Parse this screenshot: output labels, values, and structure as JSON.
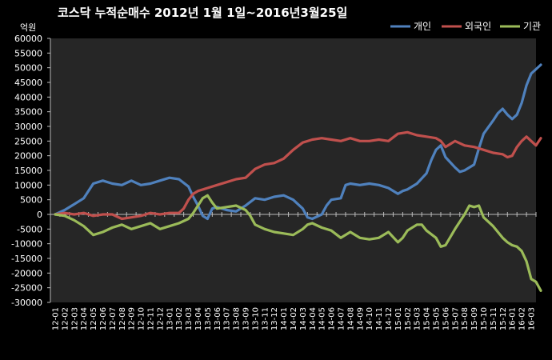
{
  "chart_data": {
    "type": "line",
    "title": "코스닥  누적순매수 2012년 1월 1일~2016년3월25일",
    "unit_label": "억원",
    "ylim": [
      -30000,
      60000
    ],
    "y_ticks": [
      60000,
      55000,
      50000,
      45000,
      40000,
      35000,
      30000,
      25000,
      20000,
      15000,
      10000,
      5000,
      0,
      -5000,
      -10000,
      -15000,
      -20000,
      -25000,
      -30000
    ],
    "categories": [
      "12-01",
      "12-02",
      "12-03",
      "12-04",
      "12-05",
      "12-06",
      "12-07",
      "12-08",
      "12-09",
      "12-10",
      "12-11",
      "12-12",
      "13-01",
      "13-02",
      "13-03",
      "13-04",
      "13-05",
      "13-06",
      "13-07",
      "13-08",
      "13-09",
      "13-10",
      "13-11",
      "13-12",
      "14-01",
      "14-02",
      "14-03",
      "14-04",
      "14-05",
      "14-06",
      "14-07",
      "14-08",
      "14-09",
      "14-10",
      "14-11",
      "14-12",
      "15-01",
      "15-02",
      "15-03",
      "15-04",
      "15-05",
      "15-06",
      "15-07",
      "15-08",
      "15-09",
      "15-10",
      "15-11",
      "15-12",
      "16-01",
      "16-02",
      "16-03"
    ],
    "grid": false,
    "legend_position": "top-right",
    "series": [
      {
        "name": "개인",
        "color": "#4F81BD",
        "points": [
          [
            0,
            0
          ],
          [
            1,
            1500
          ],
          [
            2,
            3500
          ],
          [
            3,
            5500
          ],
          [
            4,
            10500
          ],
          [
            5,
            11500
          ],
          [
            6,
            10500
          ],
          [
            7,
            10000
          ],
          [
            8,
            11500
          ],
          [
            9,
            10000
          ],
          [
            10,
            10500
          ],
          [
            11,
            11500
          ],
          [
            12,
            12500
          ],
          [
            13,
            12000
          ],
          [
            14,
            9500
          ],
          [
            14.5,
            6000
          ],
          [
            15,
            3000
          ],
          [
            15.5,
            -500
          ],
          [
            16,
            -1500
          ],
          [
            16.5,
            2000
          ],
          [
            17,
            2500
          ],
          [
            18,
            1500
          ],
          [
            19,
            1000
          ],
          [
            20,
            3000
          ],
          [
            21,
            5500
          ],
          [
            22,
            5000
          ],
          [
            23,
            6000
          ],
          [
            24,
            6500
          ],
          [
            25,
            5000
          ],
          [
            26,
            2000
          ],
          [
            26.5,
            -1000
          ],
          [
            27,
            -1500
          ],
          [
            28,
            0
          ],
          [
            28.5,
            3000
          ],
          [
            29,
            5000
          ],
          [
            30,
            5500
          ],
          [
            30.5,
            10000
          ],
          [
            31,
            10500
          ],
          [
            32,
            10000
          ],
          [
            33,
            10500
          ],
          [
            34,
            10000
          ],
          [
            35,
            9000
          ],
          [
            36,
            7000
          ],
          [
            36.5,
            8000
          ],
          [
            37,
            8500
          ],
          [
            38,
            10500
          ],
          [
            39,
            14000
          ],
          [
            39.5,
            18500
          ],
          [
            40,
            22000
          ],
          [
            40.5,
            23500
          ],
          [
            41,
            19500
          ],
          [
            42,
            16000
          ],
          [
            42.5,
            14500
          ],
          [
            43,
            15000
          ],
          [
            44,
            17000
          ],
          [
            44.5,
            22500
          ],
          [
            45,
            27500
          ],
          [
            46,
            32000
          ],
          [
            46.5,
            34500
          ],
          [
            47,
            36000
          ],
          [
            47.5,
            34000
          ],
          [
            48,
            32500
          ],
          [
            48.5,
            34000
          ],
          [
            49,
            38000
          ],
          [
            49.5,
            44000
          ],
          [
            50,
            48000
          ],
          [
            51,
            51000
          ]
        ]
      },
      {
        "name": "외국인",
        "color": "#C0504D",
        "points": [
          [
            0,
            0
          ],
          [
            1,
            500
          ],
          [
            2,
            0
          ],
          [
            3,
            500
          ],
          [
            4,
            -500
          ],
          [
            5,
            0
          ],
          [
            6,
            0
          ],
          [
            7,
            -1500
          ],
          [
            8,
            -1000
          ],
          [
            9,
            -500
          ],
          [
            10,
            500
          ],
          [
            11,
            0
          ],
          [
            12,
            500
          ],
          [
            13,
            500
          ],
          [
            13.5,
            2000
          ],
          [
            14,
            5000
          ],
          [
            14.5,
            7000
          ],
          [
            15,
            8000
          ],
          [
            16,
            9000
          ],
          [
            17,
            10000
          ],
          [
            18,
            11000
          ],
          [
            19,
            12000
          ],
          [
            20,
            12500
          ],
          [
            21,
            15500
          ],
          [
            22,
            17000
          ],
          [
            23,
            17500
          ],
          [
            24,
            19000
          ],
          [
            25,
            22000
          ],
          [
            26,
            24500
          ],
          [
            27,
            25500
          ],
          [
            28,
            26000
          ],
          [
            29,
            25500
          ],
          [
            30,
            25000
          ],
          [
            31,
            26000
          ],
          [
            32,
            25000
          ],
          [
            33,
            25000
          ],
          [
            34,
            25500
          ],
          [
            35,
            25000
          ],
          [
            36,
            27500
          ],
          [
            37,
            28000
          ],
          [
            38,
            27000
          ],
          [
            39,
            26500
          ],
          [
            40,
            26000
          ],
          [
            40.5,
            25000
          ],
          [
            41,
            23000
          ],
          [
            41.5,
            24000
          ],
          [
            42,
            25000
          ],
          [
            43,
            23500
          ],
          [
            44,
            23000
          ],
          [
            45,
            22000
          ],
          [
            46,
            21000
          ],
          [
            47,
            20500
          ],
          [
            47.5,
            19500
          ],
          [
            48,
            20000
          ],
          [
            48.5,
            23000
          ],
          [
            49,
            25000
          ],
          [
            49.5,
            26500
          ],
          [
            50,
            25000
          ],
          [
            50.5,
            23500
          ],
          [
            51,
            26000
          ]
        ]
      },
      {
        "name": "기관",
        "color": "#9BBB59",
        "points": [
          [
            0,
            0
          ],
          [
            1,
            -500
          ],
          [
            2,
            -2000
          ],
          [
            3,
            -4000
          ],
          [
            4,
            -7000
          ],
          [
            5,
            -6000
          ],
          [
            6,
            -4500
          ],
          [
            7,
            -3500
          ],
          [
            8,
            -5000
          ],
          [
            9,
            -4000
          ],
          [
            10,
            -3000
          ],
          [
            11,
            -5000
          ],
          [
            12,
            -4000
          ],
          [
            13,
            -3000
          ],
          [
            14,
            -1500
          ],
          [
            14.5,
            500
          ],
          [
            15,
            3000
          ],
          [
            15.5,
            5500
          ],
          [
            16,
            6500
          ],
          [
            16.5,
            4000
          ],
          [
            17,
            2000
          ],
          [
            18,
            2500
          ],
          [
            19,
            3000
          ],
          [
            20,
            1500
          ],
          [
            20.5,
            -500
          ],
          [
            21,
            -3500
          ],
          [
            22,
            -5000
          ],
          [
            23,
            -6000
          ],
          [
            24,
            -6500
          ],
          [
            25,
            -7000
          ],
          [
            26,
            -5000
          ],
          [
            26.5,
            -3500
          ],
          [
            27,
            -3000
          ],
          [
            28,
            -4500
          ],
          [
            29,
            -5500
          ],
          [
            30,
            -8000
          ],
          [
            31,
            -6000
          ],
          [
            32,
            -8000
          ],
          [
            33,
            -8500
          ],
          [
            34,
            -8000
          ],
          [
            35,
            -6000
          ],
          [
            36,
            -9500
          ],
          [
            36.5,
            -8000
          ],
          [
            37,
            -5500
          ],
          [
            38,
            -3500
          ],
          [
            38.5,
            -3500
          ],
          [
            39,
            -5500
          ],
          [
            40,
            -8000
          ],
          [
            40.5,
            -11000
          ],
          [
            41,
            -10500
          ],
          [
            42,
            -5000
          ],
          [
            43,
            0
          ],
          [
            43.5,
            3000
          ],
          [
            44,
            2500
          ],
          [
            44.5,
            3000
          ],
          [
            45,
            -1000
          ],
          [
            46,
            -4000
          ],
          [
            47,
            -8000
          ],
          [
            47.5,
            -9500
          ],
          [
            48,
            -10500
          ],
          [
            48.5,
            -11000
          ],
          [
            49,
            -12500
          ],
          [
            49.5,
            -16000
          ],
          [
            50,
            -22000
          ],
          [
            50.5,
            -23000
          ],
          [
            51,
            -26000
          ]
        ]
      }
    ]
  }
}
